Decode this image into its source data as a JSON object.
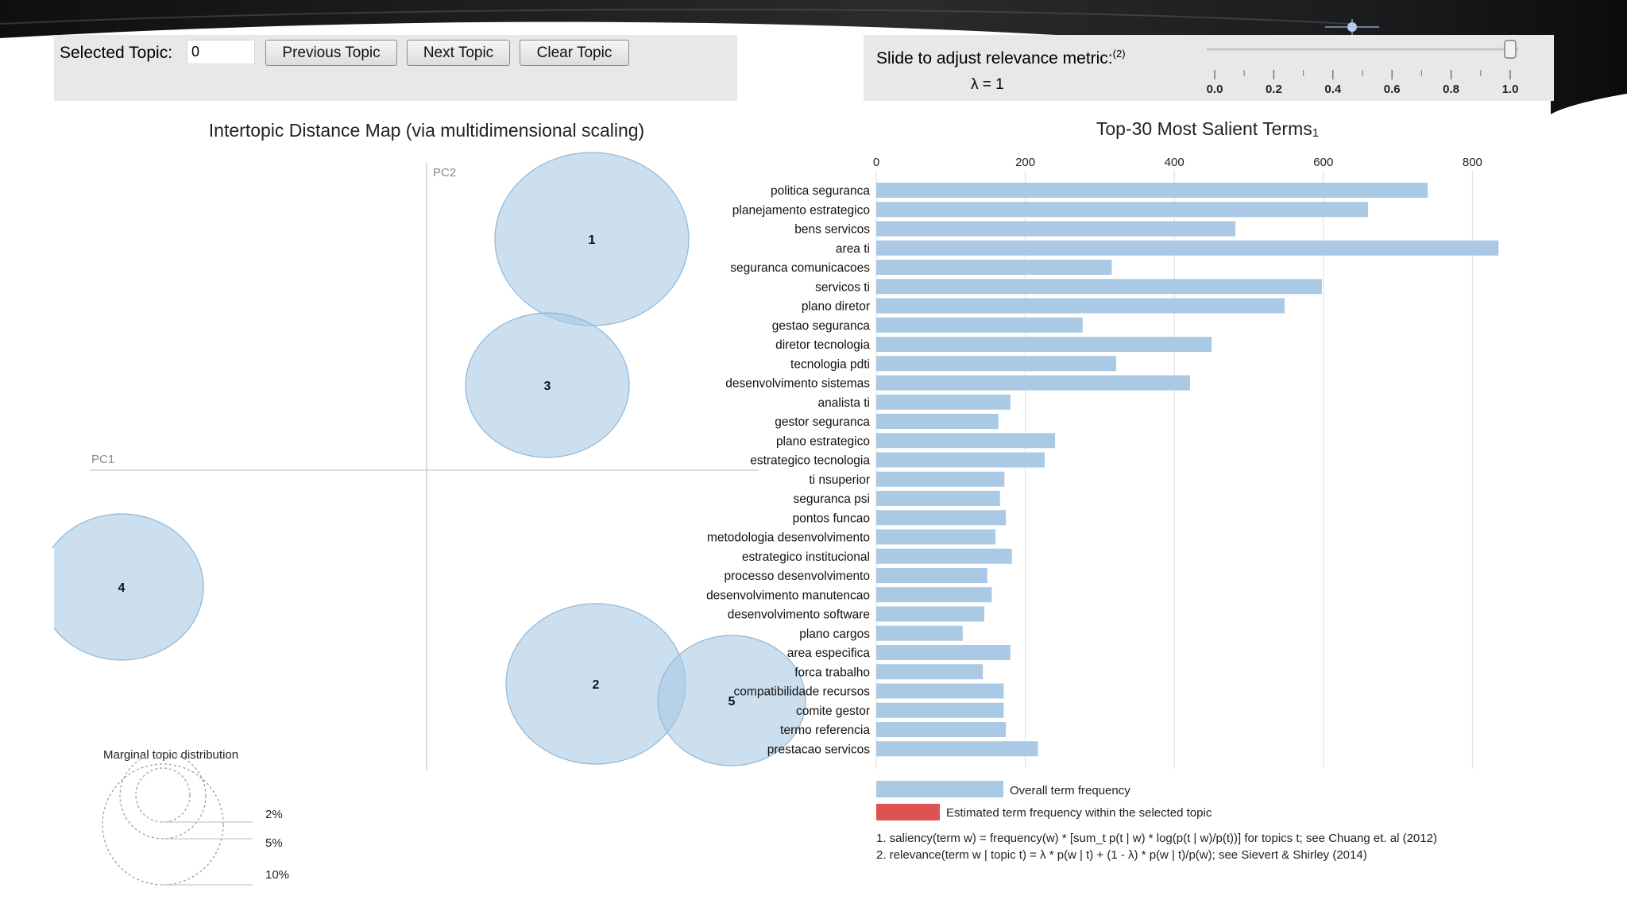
{
  "controls": {
    "selected_topic_label": "Selected Topic:",
    "selected_topic_value": "0",
    "prev_label": "Previous Topic",
    "next_label": "Next Topic",
    "clear_label": "Clear Topic"
  },
  "slider": {
    "label": "Slide to adjust relevance metric:",
    "label_sup": "(2)",
    "lambda_text": "λ = 1",
    "value": 1,
    "ticks": [
      "0.0",
      "0.2",
      "0.4",
      "0.6",
      "0.8",
      "1.0"
    ]
  },
  "left_panel": {
    "title": "Intertopic Distance Map (via multidimensional scaling)",
    "pc1_label": "PC1",
    "pc2_label": "PC2",
    "topics": [
      {
        "id": "1"
      },
      {
        "id": "2"
      },
      {
        "id": "3"
      },
      {
        "id": "4"
      },
      {
        "id": "5"
      }
    ],
    "marginal": {
      "title": "Marginal topic distribution",
      "levels": [
        "2%",
        "5%",
        "10%"
      ]
    }
  },
  "chart_data": {
    "type": "bar",
    "orientation": "horizontal",
    "title": "Top-30 Most Salient Terms",
    "title_sup": "1",
    "xlim": [
      0,
      840
    ],
    "xticks": [
      "0",
      "200",
      "400",
      "600",
      "800"
    ],
    "grid": true,
    "categories": [
      "politica seguranca",
      "planejamento estrategico",
      "bens servicos",
      "area ti",
      "seguranca comunicacoes",
      "servicos ti",
      "plano diretor",
      "gestao seguranca",
      "diretor tecnologia",
      "tecnologia pdti",
      "desenvolvimento sistemas",
      "analista ti",
      "gestor seguranca",
      "plano estrategico",
      "estrategico tecnologia",
      "ti nsuperior",
      "seguranca psi",
      "pontos funcao",
      "metodologia desenvolvimento",
      "estrategico institucional",
      "processo desenvolvimento",
      "desenvolvimento manutencao",
      "desenvolvimento software",
      "plano cargos",
      "area especifica",
      "forca trabalho",
      "compatibilidade recursos",
      "comite gestor",
      "termo referencia",
      "prestacao servicos"
    ],
    "series": [
      {
        "name": "Overall term frequency",
        "color": "#a9c9e4",
        "values": [
          740,
          660,
          482,
          835,
          316,
          598,
          548,
          277,
          450,
          322,
          421,
          180,
          164,
          240,
          226,
          172,
          166,
          174,
          160,
          182,
          149,
          155,
          145,
          116,
          180,
          143,
          171,
          171,
          174,
          217
        ]
      }
    ],
    "legend": {
      "overall": "Overall term frequency",
      "estimated": "Estimated term frequency within the selected topic",
      "overall_color": "#a9c9e4",
      "estimated_color": "#e05252"
    },
    "footnotes": [
      "1. saliency(term w) = frequency(w) * [sum_t p(t | w) * log(p(t | w)/p(t))] for topics t; see Chuang et. al (2012)",
      "2. relevance(term w | topic t) = λ * p(w | t) + (1 - λ) * p(w | t)/p(w); see Sievert & Shirley (2014)"
    ]
  }
}
